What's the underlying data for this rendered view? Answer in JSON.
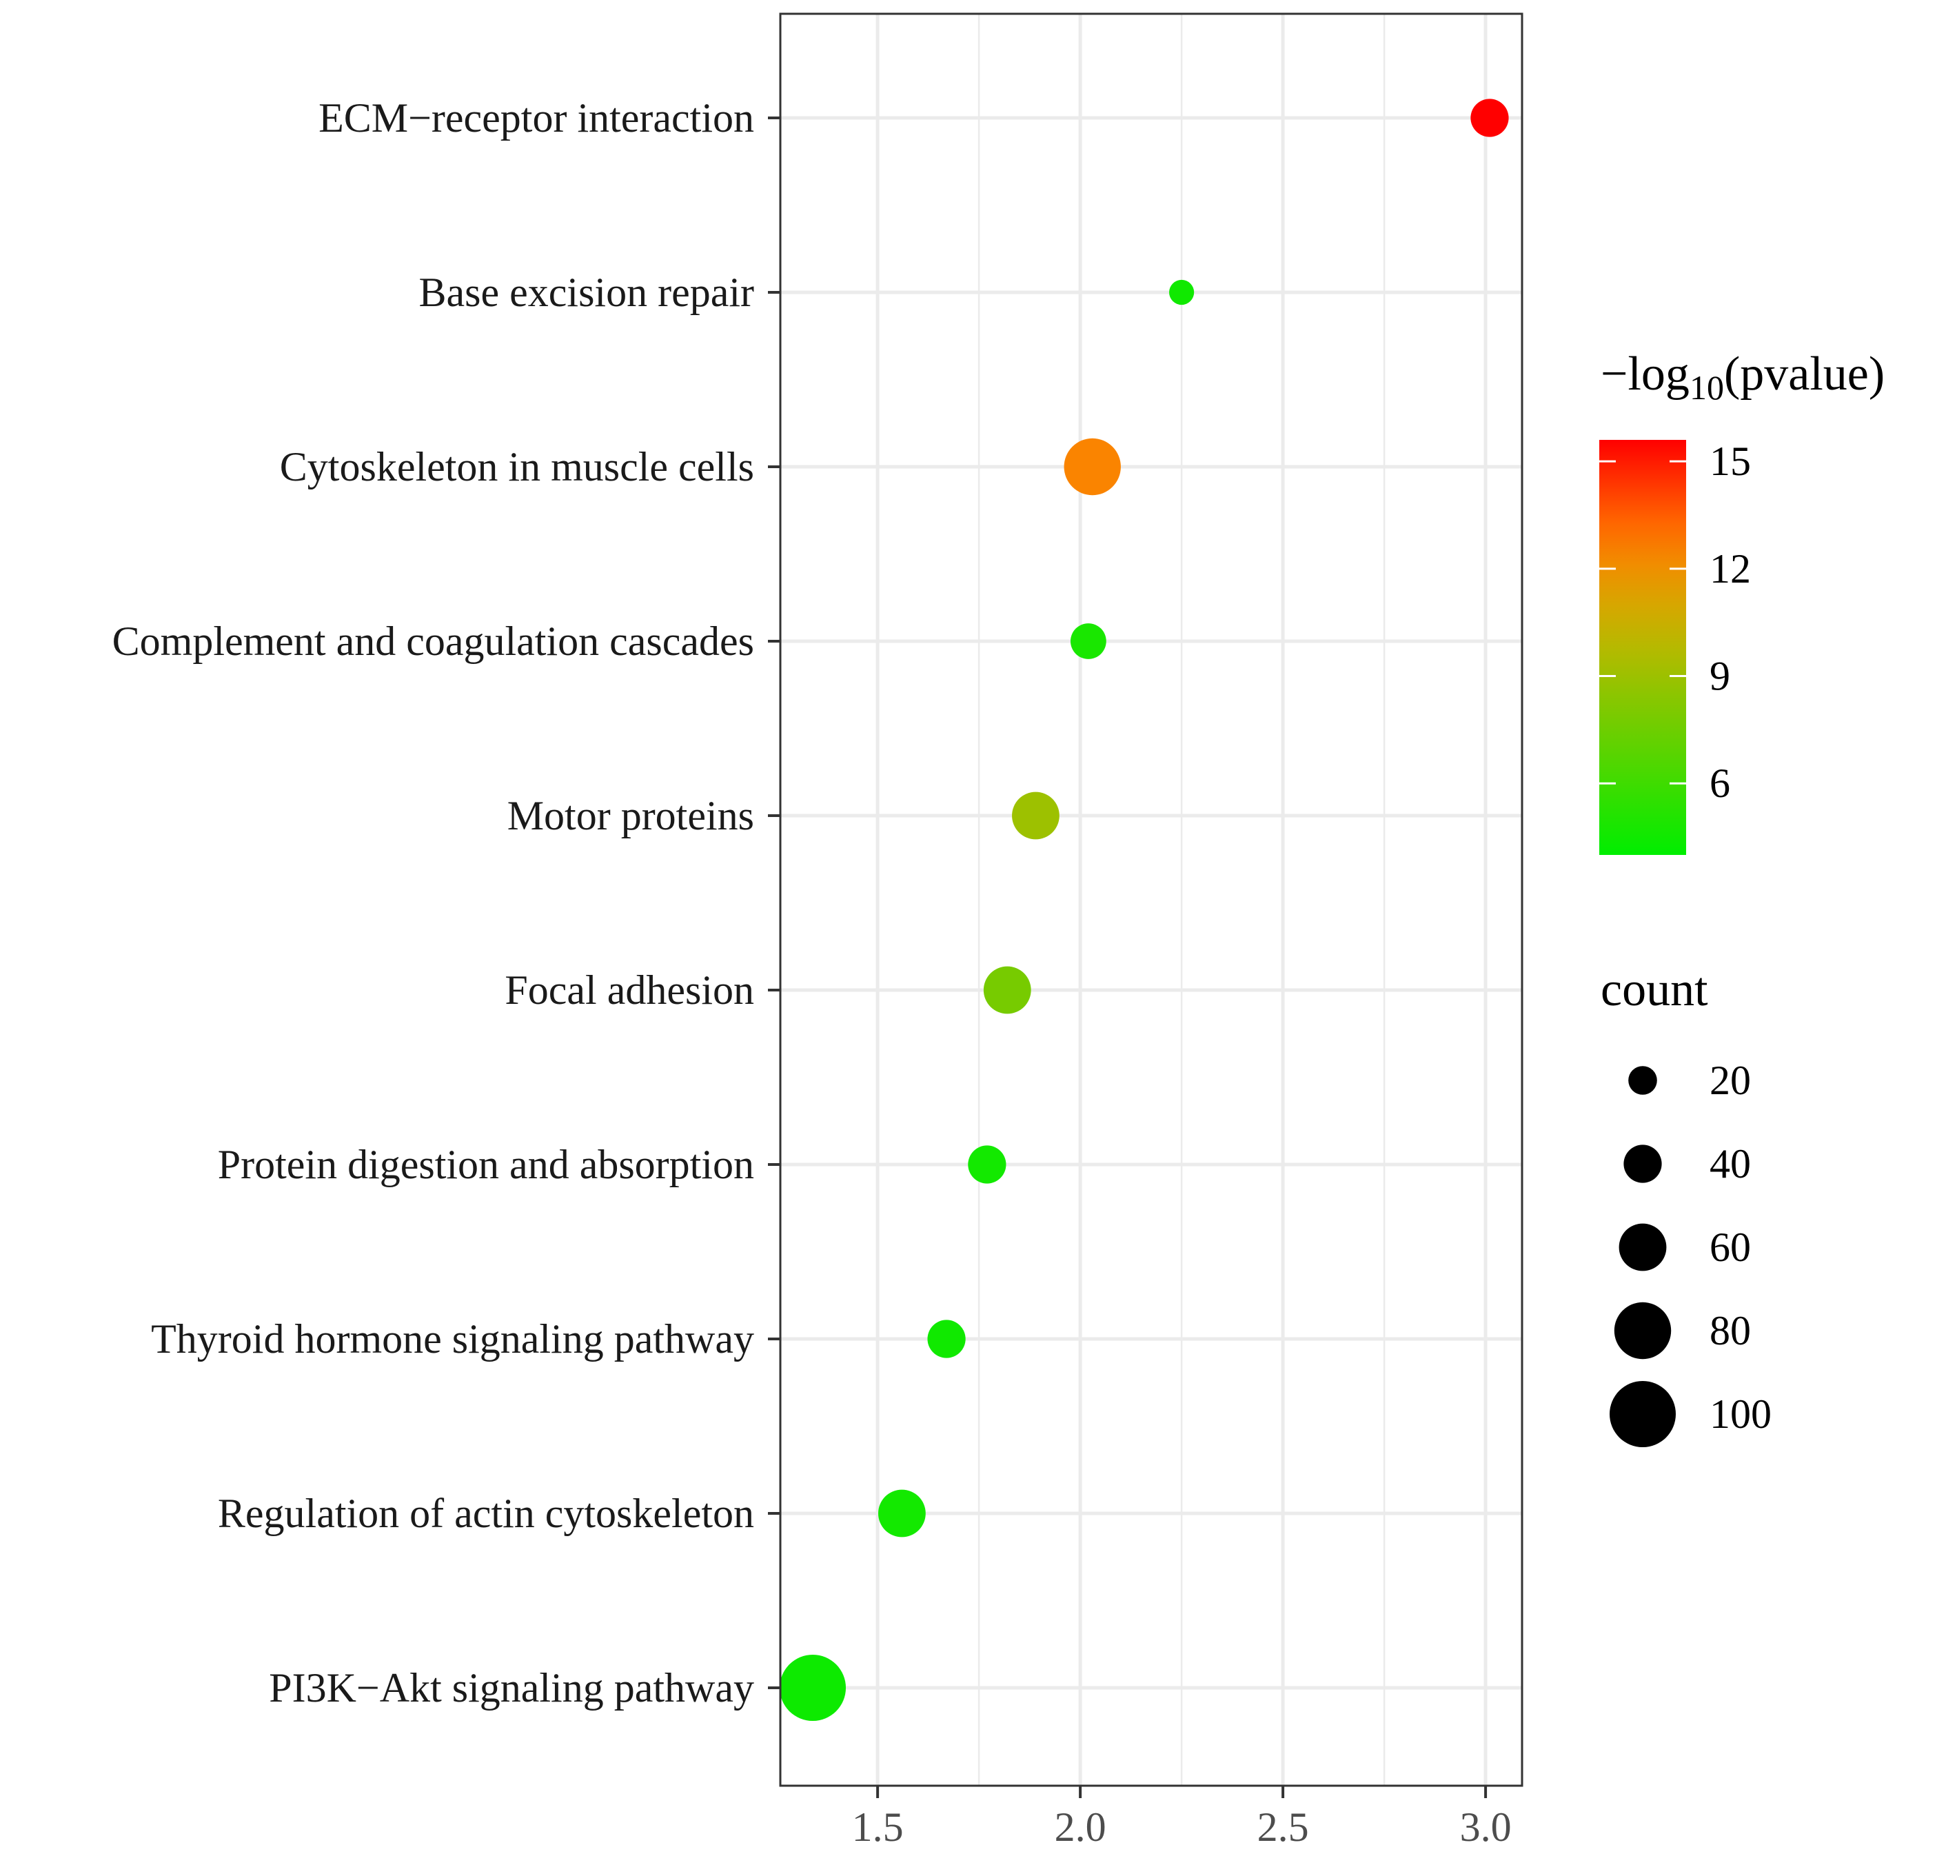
{
  "chart_data": {
    "type": "scatter",
    "title": "",
    "xlabel": "",
    "ylabel": "",
    "xlim": [
      1.26,
      3.09
    ],
    "x_ticks": [
      "1.5",
      "2.0",
      "2.5",
      "3.0"
    ],
    "x_tick_values": [
      1.5,
      2.0,
      2.5,
      3.0
    ],
    "grid": true,
    "points": [
      {
        "category": "ECM−receptor interaction",
        "x": 3.01,
        "count": 40,
        "neglog10p": 15.6
      },
      {
        "category": "Base excision repair",
        "x": 2.25,
        "count": 12,
        "neglog10p": 4.5
      },
      {
        "category": "Cytoskeleton in muscle cells",
        "x": 2.03,
        "count": 80,
        "neglog10p": 12.5
      },
      {
        "category": "Complement and coagulation cascades",
        "x": 2.02,
        "count": 35,
        "neglog10p": 4.8
      },
      {
        "category": "Motor proteins",
        "x": 1.89,
        "count": 60,
        "neglog10p": 9.0
      },
      {
        "category": "Focal adhesion",
        "x": 1.82,
        "count": 60,
        "neglog10p": 7.8
      },
      {
        "category": "Protein digestion and absorption",
        "x": 1.77,
        "count": 40,
        "neglog10p": 4.6
      },
      {
        "category": "Thyroid hormone signaling pathway",
        "x": 1.67,
        "count": 40,
        "neglog10p": 4.5
      },
      {
        "category": "Regulation of actin cytoskeleton",
        "x": 1.56,
        "count": 60,
        "neglog10p": 4.6
      },
      {
        "category": "PI3K−Akt signaling pathway",
        "x": 1.34,
        "count": 100,
        "neglog10p": 4.4
      }
    ],
    "color_legend": {
      "title_prefix": "−log",
      "title_subscript": "10",
      "title_suffix": "(pvalue)",
      "min": 4.0,
      "max": 15.6,
      "ticks": [
        {
          "value": 15,
          "label": "15"
        },
        {
          "value": 12,
          "label": "12"
        },
        {
          "value": 9,
          "label": "9"
        },
        {
          "value": 6,
          "label": "6"
        }
      ],
      "low_color": "#00ee00",
      "high_color": "#ff0000"
    },
    "size_legend": {
      "title": "count",
      "entries": [
        {
          "value": 20,
          "label": "20"
        },
        {
          "value": 40,
          "label": "40"
        },
        {
          "value": 60,
          "label": "60"
        },
        {
          "value": 80,
          "label": "80"
        },
        {
          "value": 100,
          "label": "100"
        }
      ]
    }
  }
}
